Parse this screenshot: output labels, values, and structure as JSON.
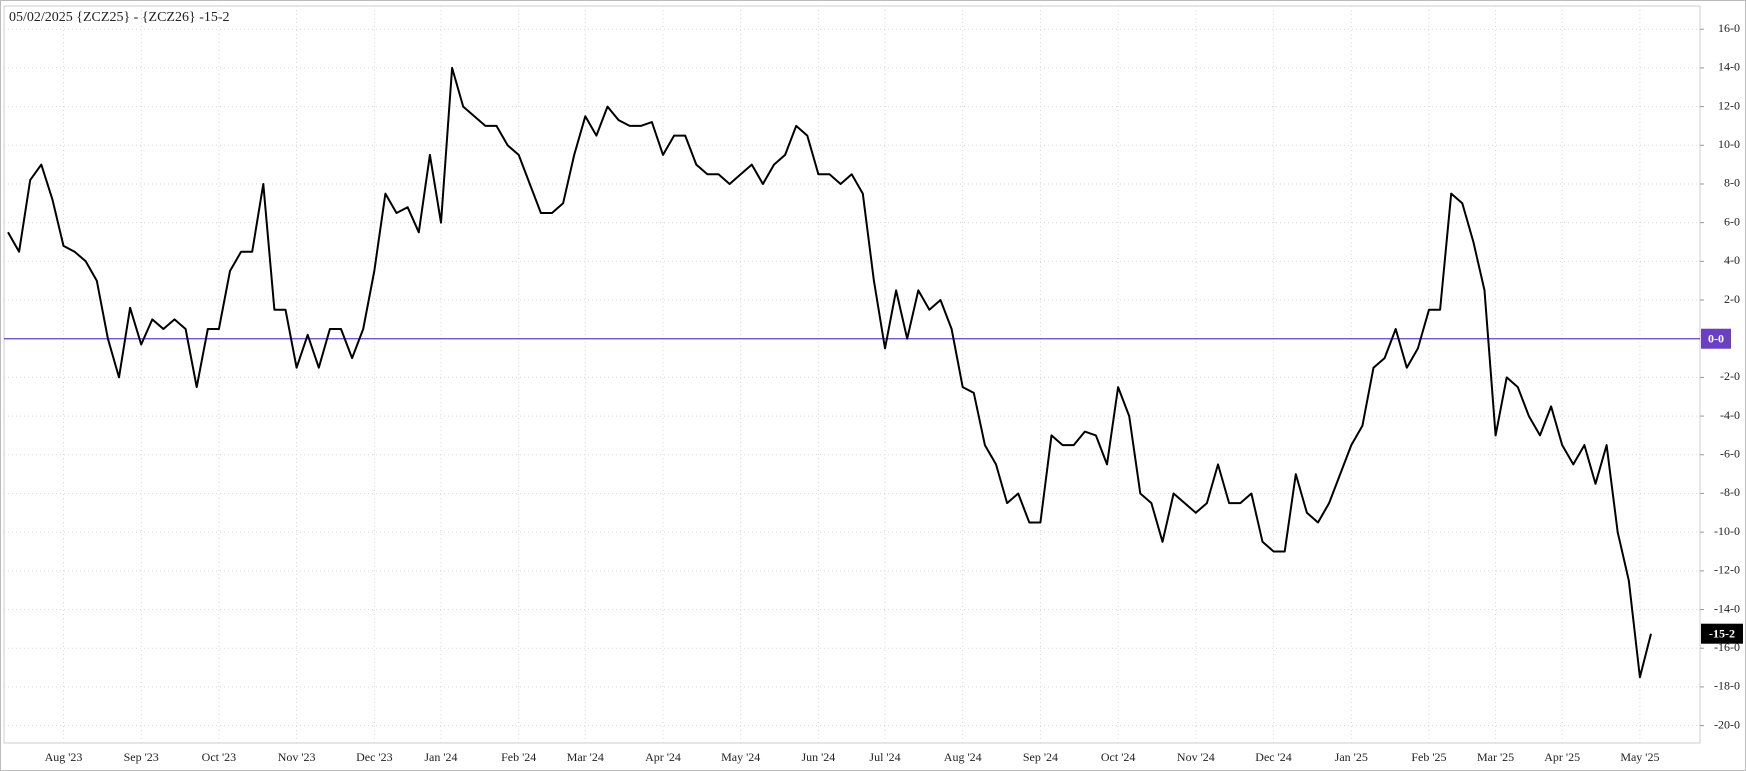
{
  "chart_data": {
    "type": "line",
    "title": "05/02/2025 {ZCZ25} - {ZCZ26} -15-2",
    "categories": [
      null,
      null,
      null,
      null,
      null,
      "Aug '23",
      null,
      null,
      null,
      null,
      null,
      null,
      "Sep '23",
      null,
      null,
      null,
      null,
      null,
      null,
      "Oct '23",
      null,
      null,
      null,
      null,
      null,
      null,
      "Nov '23",
      null,
      null,
      null,
      null,
      null,
      null,
      "Dec '23",
      null,
      null,
      null,
      null,
      null,
      "Jan '24",
      null,
      null,
      null,
      null,
      null,
      null,
      "Feb '24",
      null,
      null,
      null,
      null,
      null,
      "Mar '24",
      null,
      null,
      null,
      null,
      null,
      null,
      "Apr '24",
      null,
      null,
      null,
      null,
      null,
      null,
      "May '24",
      null,
      null,
      null,
      null,
      null,
      null,
      "Jun '24",
      null,
      null,
      null,
      null,
      null,
      "Jul '24",
      null,
      null,
      null,
      null,
      null,
      null,
      "Aug '24",
      null,
      null,
      null,
      null,
      null,
      null,
      "Sep '24",
      null,
      null,
      null,
      null,
      null,
      null,
      "Oct '24",
      null,
      null,
      null,
      null,
      null,
      null,
      "Nov '24",
      null,
      null,
      null,
      null,
      null,
      null,
      "Dec '24",
      null,
      null,
      null,
      null,
      null,
      null,
      "Jan '25",
      null,
      null,
      null,
      null,
      null,
      null,
      "Feb '25",
      null,
      null,
      null,
      null,
      null,
      "Mar '25",
      null,
      null,
      null,
      null,
      null,
      "Apr '25",
      null,
      null,
      null,
      null,
      null,
      null,
      "May '25",
      null
    ],
    "series": [
      {
        "name": "ZCZ25 - ZCZ26",
        "color": "#000000",
        "values": [
          5.5,
          4.5,
          8.2,
          9.0,
          7.2,
          4.8,
          4.5,
          4.0,
          3.0,
          0.0,
          -2.0,
          1.6,
          -0.3,
          1.0,
          0.5,
          1.0,
          0.5,
          -2.5,
          0.5,
          0.5,
          3.5,
          4.5,
          4.5,
          8.0,
          1.5,
          1.5,
          -1.5,
          0.2,
          -1.5,
          0.5,
          0.5,
          -1.0,
          0.5,
          3.5,
          7.5,
          6.5,
          6.8,
          5.5,
          9.5,
          6.0,
          14.0,
          12.0,
          11.5,
          11.0,
          11.0,
          10.0,
          9.5,
          8.0,
          6.5,
          6.5,
          7.0,
          9.5,
          11.5,
          10.5,
          12.0,
          11.3,
          11.0,
          11.0,
          11.2,
          9.5,
          10.5,
          10.5,
          9.0,
          8.5,
          8.5,
          8.0,
          8.5,
          9.0,
          8.0,
          9.0,
          9.5,
          11.0,
          10.5,
          8.5,
          8.5,
          8.0,
          8.5,
          7.5,
          3.0,
          -0.5,
          2.5,
          0.0,
          2.5,
          1.5,
          2.0,
          0.5,
          -2.5,
          -2.8,
          -5.5,
          -6.5,
          -8.5,
          -8.0,
          -9.5,
          -9.5,
          -5.0,
          -5.5,
          -5.5,
          -4.8,
          -5.0,
          -6.5,
          -2.5,
          -4.0,
          -8.0,
          -8.5,
          -10.5,
          -8.0,
          -8.5,
          -9.0,
          -8.5,
          -6.5,
          -8.5,
          -8.5,
          -8.0,
          -10.5,
          -11.0,
          -11.0,
          -7.0,
          -9.0,
          -9.5,
          -8.5,
          -7.0,
          -5.5,
          -4.5,
          -1.5,
          -1.0,
          0.5,
          -1.5,
          -0.5,
          1.5,
          1.5,
          7.5,
          7.0,
          5.0,
          2.5,
          -5.0,
          -2.0,
          -2.5,
          -4.0,
          -5.0,
          -3.5,
          -5.5,
          -6.5,
          -5.5,
          -7.5,
          -5.5,
          -10.0,
          -12.5,
          -17.5,
          -15.25
        ]
      }
    ],
    "ylim": [
      -20.9,
      17.2
    ],
    "yticks": [
      {
        "value": 16,
        "label": "16-0"
      },
      {
        "value": 14,
        "label": "14-0"
      },
      {
        "value": 12,
        "label": "12-0"
      },
      {
        "value": 10,
        "label": "10-0"
      },
      {
        "value": 8,
        "label": "8-0"
      },
      {
        "value": 6,
        "label": "6-0"
      },
      {
        "value": 4,
        "label": "4-0"
      },
      {
        "value": 2,
        "label": "2-0"
      },
      {
        "value": -2,
        "label": "-2-0"
      },
      {
        "value": -4,
        "label": "-4-0"
      },
      {
        "value": -6,
        "label": "-6-0"
      },
      {
        "value": -8,
        "label": "-8-0"
      },
      {
        "value": -10,
        "label": "-10-0"
      },
      {
        "value": -12,
        "label": "-12-0"
      },
      {
        "value": -14,
        "label": "-14-0"
      },
      {
        "value": -16,
        "label": "-16-0"
      },
      {
        "value": -18,
        "label": "-18-0"
      },
      {
        "value": -20,
        "label": "-20-0"
      }
    ],
    "reference_line": {
      "value": 0,
      "label": "0-0",
      "color": "#6a3fc1"
    },
    "last_price": {
      "value": -15.25,
      "label": "-15-2",
      "color": "#000000"
    },
    "grid": true
  }
}
